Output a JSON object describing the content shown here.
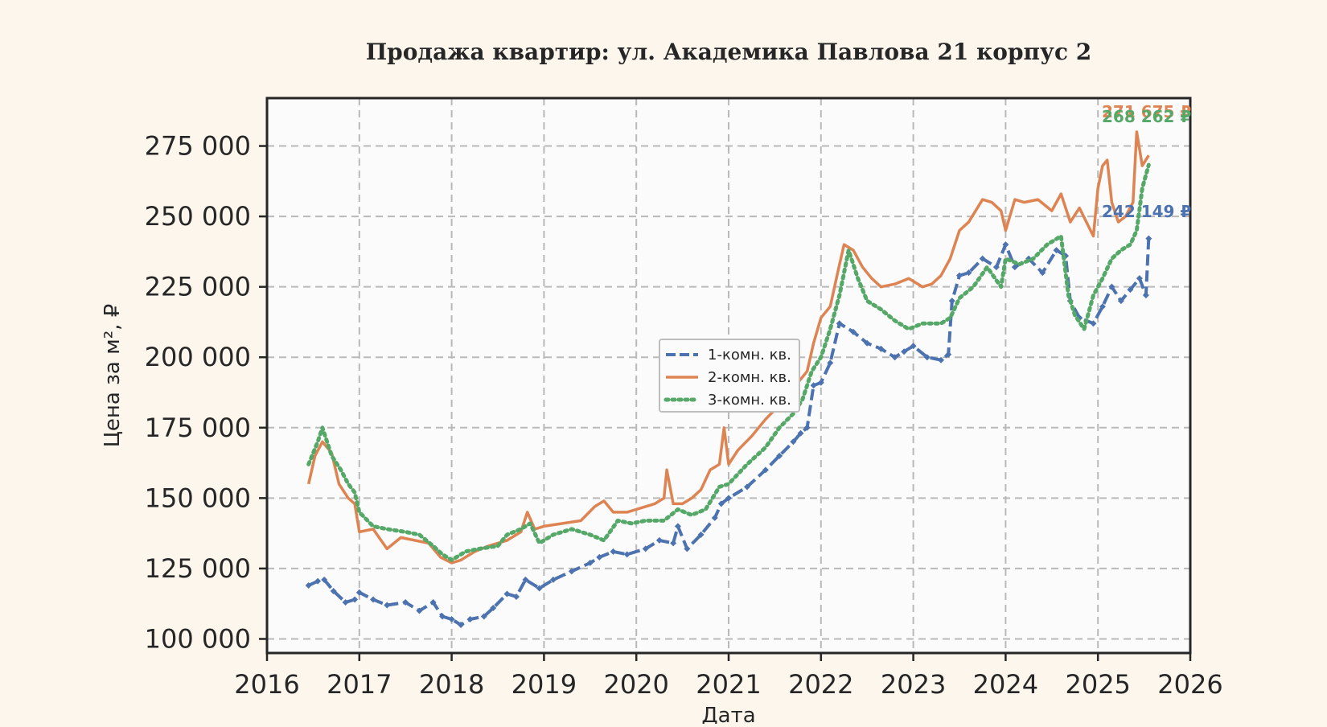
{
  "colors": {
    "background": "#fdf6ec",
    "plot_background": "#fbfbfb",
    "grid": "#b9b9b9",
    "axis": "#262626"
  },
  "chart_data": {
    "type": "line",
    "title": "Продажа квартир: ул. Академика Павлова 21 корпус 2",
    "xlabel": "Дата",
    "ylabel": "Цена за м², ₽",
    "xlim": [
      2016,
      2026
    ],
    "ylim": [
      95000,
      292000
    ],
    "grid": true,
    "legend_position": "center-left",
    "x_ticks": [
      2016,
      2017,
      2018,
      2019,
      2020,
      2021,
      2022,
      2023,
      2024,
      2025,
      2026
    ],
    "x_tick_labels": [
      "2016",
      "2017",
      "2018",
      "2019",
      "2020",
      "2021",
      "2022",
      "2023",
      "2024",
      "2025",
      "2026"
    ],
    "y_ticks": [
      100000,
      125000,
      150000,
      175000,
      200000,
      225000,
      250000,
      275000
    ],
    "y_tick_labels": [
      "100 000",
      "125 000",
      "150 000",
      "175 000",
      "200 000",
      "225 000",
      "250 000",
      "275 000"
    ],
    "series": [
      {
        "name": "1-комн. кв.",
        "color": "#4c72b0",
        "style": "dashed-diamond",
        "end_label": "242 149 ₽",
        "end_value": 242149,
        "x": [
          2016.45,
          2016.55,
          2016.62,
          2016.72,
          2016.85,
          2016.95,
          2017.0,
          2017.15,
          2017.3,
          2017.5,
          2017.65,
          2017.8,
          2017.9,
          2018.0,
          2018.1,
          2018.2,
          2018.35,
          2018.45,
          2018.6,
          2018.7,
          2018.8,
          2018.95,
          2019.1,
          2019.3,
          2019.5,
          2019.6,
          2019.75,
          2019.9,
          2020.1,
          2020.25,
          2020.4,
          2020.45,
          2020.55,
          2020.7,
          2020.85,
          2020.92,
          2021.0,
          2021.2,
          2021.4,
          2021.55,
          2021.7,
          2021.78,
          2021.85,
          2021.92,
          2022.0,
          2022.1,
          2022.2,
          2022.35,
          2022.5,
          2022.65,
          2022.8,
          2022.9,
          2023.0,
          2023.15,
          2023.3,
          2023.38,
          2023.42,
          2023.5,
          2023.6,
          2023.75,
          2023.9,
          2024.0,
          2024.1,
          2024.25,
          2024.4,
          2024.55,
          2024.65,
          2024.7,
          2024.8,
          2024.95,
          2025.05,
          2025.15,
          2025.25,
          2025.35,
          2025.45,
          2025.52,
          2025.55
        ],
        "y": [
          119000,
          120500,
          121000,
          117000,
          113000,
          114000,
          116500,
          114000,
          112000,
          113000,
          110000,
          113000,
          108000,
          107000,
          105000,
          107000,
          108000,
          111000,
          116000,
          115000,
          121000,
          118000,
          121000,
          124000,
          127000,
          129000,
          131000,
          130000,
          132000,
          135000,
          134000,
          140000,
          132000,
          137000,
          143000,
          148000,
          150000,
          154000,
          160000,
          165000,
          170000,
          173000,
          175000,
          190000,
          191000,
          198000,
          212000,
          209000,
          205000,
          203000,
          200000,
          202000,
          204000,
          200000,
          199000,
          201000,
          220000,
          229000,
          230000,
          235000,
          232000,
          240000,
          232000,
          235000,
          230000,
          238000,
          236000,
          220000,
          214000,
          212000,
          218000,
          225000,
          220000,
          224000,
          228000,
          222000,
          242149
        ]
      },
      {
        "name": "2-комн. кв.",
        "color": "#dd8452",
        "style": "solid",
        "end_label": "271 675 ₽",
        "end_value": 271675,
        "x": [
          2016.45,
          2016.52,
          2016.6,
          2016.7,
          2016.78,
          2016.88,
          2016.95,
          2017.0,
          2017.15,
          2017.3,
          2017.45,
          2017.6,
          2017.75,
          2017.88,
          2018.0,
          2018.1,
          2018.25,
          2018.4,
          2018.6,
          2018.75,
          2018.82,
          2018.9,
          2019.0,
          2019.2,
          2019.4,
          2019.55,
          2019.65,
          2019.75,
          2019.9,
          2020.1,
          2020.2,
          2020.3,
          2020.33,
          2020.4,
          2020.5,
          2020.6,
          2020.7,
          2020.8,
          2020.9,
          2020.95,
          2021.0,
          2021.1,
          2021.25,
          2021.4,
          2021.55,
          2021.7,
          2021.85,
          2021.92,
          2022.0,
          2022.1,
          2022.18,
          2022.25,
          2022.35,
          2022.45,
          2022.55,
          2022.65,
          2022.8,
          2022.95,
          2023.1,
          2023.2,
          2023.3,
          2023.4,
          2023.5,
          2023.6,
          2023.75,
          2023.85,
          2023.95,
          2024.0,
          2024.1,
          2024.2,
          2024.35,
          2024.5,
          2024.6,
          2024.7,
          2024.8,
          2024.95,
          2025.0,
          2025.05,
          2025.1,
          2025.15,
          2025.22,
          2025.3,
          2025.38,
          2025.42,
          2025.48,
          2025.55
        ],
        "y": [
          155000,
          165000,
          170000,
          166000,
          155000,
          150000,
          148000,
          138000,
          139000,
          132000,
          136000,
          135000,
          134000,
          129000,
          127000,
          128000,
          131000,
          133000,
          135000,
          138000,
          145000,
          139000,
          140000,
          141000,
          142000,
          147000,
          149000,
          145000,
          145000,
          147000,
          148000,
          150000,
          160000,
          148000,
          148000,
          150000,
          153000,
          160000,
          162000,
          175000,
          162000,
          167000,
          172000,
          178000,
          183000,
          189000,
          195000,
          205000,
          214000,
          218000,
          230000,
          240000,
          238000,
          232000,
          228000,
          225000,
          226000,
          228000,
          225000,
          226000,
          229000,
          235000,
          245000,
          248000,
          256000,
          255000,
          252000,
          245000,
          256000,
          255000,
          256000,
          252000,
          258000,
          248000,
          253000,
          243000,
          260000,
          268000,
          270000,
          255000,
          248000,
          250000,
          255000,
          280000,
          268000,
          271675
        ]
      },
      {
        "name": "3-комн. кв.",
        "color": "#55a868",
        "style": "dotted",
        "end_label": "268 262 ₽",
        "end_value": 268262,
        "x": [
          2016.45,
          2016.55,
          2016.6,
          2016.7,
          2016.8,
          2016.88,
          2016.95,
          2017.0,
          2017.15,
          2017.3,
          2017.5,
          2017.65,
          2017.8,
          2017.9,
          2018.0,
          2018.15,
          2018.3,
          2018.5,
          2018.6,
          2018.75,
          2018.85,
          2018.95,
          2019.1,
          2019.3,
          2019.5,
          2019.65,
          2019.8,
          2019.95,
          2020.1,
          2020.3,
          2020.45,
          2020.6,
          2020.75,
          2020.9,
          2021.0,
          2021.2,
          2021.4,
          2021.55,
          2021.7,
          2021.8,
          2021.9,
          2022.0,
          2022.1,
          2022.2,
          2022.3,
          2022.4,
          2022.5,
          2022.65,
          2022.8,
          2022.95,
          2023.1,
          2023.3,
          2023.4,
          2023.5,
          2023.65,
          2023.8,
          2023.95,
          2024.0,
          2024.15,
          2024.3,
          2024.45,
          2024.6,
          2024.68,
          2024.75,
          2024.85,
          2024.95,
          2025.05,
          2025.15,
          2025.25,
          2025.35,
          2025.42,
          2025.48,
          2025.55
        ],
        "y": [
          162000,
          170000,
          175000,
          165000,
          160000,
          155000,
          152000,
          145000,
          140000,
          139000,
          138000,
          137000,
          133000,
          130000,
          128000,
          131000,
          132000,
          133000,
          137000,
          139000,
          141000,
          134000,
          137000,
          139000,
          137000,
          135000,
          142000,
          141000,
          142000,
          142000,
          146000,
          144000,
          146000,
          154000,
          155000,
          162000,
          168000,
          175000,
          180000,
          185000,
          195000,
          200000,
          210000,
          222000,
          238000,
          228000,
          220000,
          217000,
          213000,
          210000,
          212000,
          212000,
          214000,
          221000,
          225000,
          232000,
          225000,
          235000,
          233000,
          235000,
          240000,
          243000,
          222000,
          215000,
          210000,
          222000,
          228000,
          235000,
          238000,
          240000,
          245000,
          260000,
          268262
        ]
      }
    ]
  }
}
